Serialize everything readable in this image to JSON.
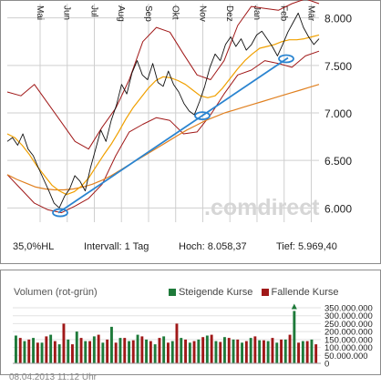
{
  "chart_data": [
    {
      "type": "line",
      "months": [
        "Mai",
        "Jun",
        "Jul",
        "Aug",
        "Sep",
        "Okt",
        "Nov",
        "Dez",
        "Jan",
        "Feb",
        "Mär"
      ],
      "ylim": [
        5.85,
        8.15
      ],
      "yticks": [
        "8.000",
        "7.500",
        "7.000",
        "6.500",
        "6.000"
      ],
      "ytick_values": [
        8.0,
        7.5,
        7.0,
        6.5,
        6.0
      ],
      "series": [
        {
          "values": [
            6.7,
            6.74,
            6.66,
            6.78,
            6.62,
            6.55,
            6.42,
            6.3,
            6.18,
            6.05,
            6.0,
            6.12,
            6.2,
            6.34,
            6.28,
            6.18,
            6.42,
            6.62,
            6.82,
            6.7,
            6.92,
            7.08,
            7.3,
            7.2,
            7.42,
            7.55,
            7.4,
            7.35,
            7.52,
            7.32,
            7.28,
            7.44,
            7.3,
            7.22,
            7.1,
            7.02,
            6.98,
            7.12,
            7.28,
            7.48,
            7.62,
            7.55,
            7.72,
            7.8,
            7.7,
            7.78,
            7.66,
            7.72,
            7.82,
            7.86,
            7.78,
            7.7,
            7.6,
            7.72,
            7.85,
            7.95,
            8.05,
            7.9,
            7.8,
            7.72,
            7.78
          ]
        },
        {
          "values": [
            6.78,
            6.74,
            6.66,
            6.56,
            6.44,
            6.34,
            6.24,
            6.18,
            6.14,
            6.17,
            6.23,
            6.32,
            6.44,
            6.56,
            6.67,
            6.8,
            6.94,
            7.06,
            7.16,
            7.26,
            7.34,
            7.38,
            7.37,
            7.34,
            7.3,
            7.24,
            7.18,
            7.16,
            7.18,
            7.26,
            7.36,
            7.46,
            7.55,
            7.62,
            7.68,
            7.7,
            7.72,
            7.75,
            7.77,
            7.77,
            7.78,
            7.8,
            7.82
          ]
        },
        {
          "values": [
            6.35,
            6.3,
            6.26,
            6.22,
            6.2,
            6.19,
            6.19,
            6.2,
            6.22,
            6.25,
            6.29,
            6.34,
            6.4,
            6.46,
            6.52,
            6.58,
            6.64,
            6.7,
            6.76,
            6.82,
            6.87,
            6.92,
            6.96,
            7.0,
            7.03,
            7.06,
            7.09,
            7.12,
            7.15,
            7.18,
            7.21,
            7.24,
            7.27,
            7.3
          ]
        },
        {
          "values": [
            5.95,
            7.58
          ]
        },
        {
          "values": [
            7.22,
            7.18,
            7.3,
            7.1,
            6.9,
            6.7,
            6.62,
            6.85,
            7.05,
            7.35,
            7.75,
            7.9,
            7.85,
            7.62,
            7.4,
            7.35,
            7.55,
            7.92,
            8.12,
            8.1,
            8.08,
            8.15,
            8.2,
            8.15
          ]
        },
        {
          "values": [
            6.35,
            6.2,
            6.05,
            5.98,
            5.95,
            6.02,
            6.1,
            6.25,
            6.55,
            6.8,
            6.88,
            6.95,
            6.92,
            6.78,
            6.8,
            6.98,
            7.2,
            7.4,
            7.45,
            7.55,
            7.52,
            7.48,
            7.6,
            7.65
          ]
        }
      ]
    },
    {
      "type": "bar",
      "title": "Volumen (rot-grün)",
      "ylim": [
        0,
        350000000
      ],
      "yticks": [
        "350.000.000",
        "300.000.000",
        "250.000.000",
        "200.000.000",
        "150.000.000",
        "100.000.000",
        "50.000.000",
        "0"
      ],
      "ytick_values": [
        350000000,
        300000000,
        250000000,
        200000000,
        150000000,
        100000000,
        50000000,
        0
      ],
      "series": [
        {
          "name": "Steigende Kurse",
          "values": [
            175000000,
            140000000,
            160000000,
            130000000,
            180000000,
            120000000,
            150000000,
            200000000,
            140000000,
            170000000,
            130000000,
            230000000,
            160000000,
            140000000,
            180000000,
            150000000,
            120000000,
            170000000,
            140000000,
            160000000,
            130000000,
            150000000,
            175000000,
            140000000,
            165000000,
            150000000,
            130000000,
            160000000,
            145000000,
            140000000,
            130000000,
            150000000,
            330000000,
            140000000,
            150000000
          ]
        },
        {
          "name": "Fallende Kurse",
          "values": [
            160000000,
            150000000,
            130000000,
            170000000,
            140000000,
            250000000,
            120000000,
            160000000,
            140000000,
            180000000,
            150000000,
            130000000,
            160000000,
            145000000,
            170000000,
            140000000,
            160000000,
            130000000,
            250000000,
            150000000,
            140000000,
            165000000,
            180000000,
            135000000,
            160000000,
            150000000,
            140000000,
            170000000,
            145000000,
            160000000,
            150000000,
            180000000,
            130000000,
            140000000,
            120000000
          ]
        }
      ]
    }
  ],
  "colors": {
    "price_line": "#111111",
    "bollinger": "#a01818",
    "ma_short": "#f0a000",
    "ma_long": "#e08020",
    "trendline": "#2a84d0",
    "rising": "#1e7a3a",
    "falling": "#a01818",
    "grid": "#cfcfcf"
  },
  "watermark": ".comdirect",
  "info": {
    "hl": "35,0%HL",
    "interval": "Intervall: 1 Tag",
    "high": "Hoch:  8.058,37",
    "low": "Tief:  5.969,40"
  },
  "volume": {
    "title": "Volumen (rot-grün)",
    "legend_rising": "Steigende Kurse",
    "legend_falling": "Fallende Kurse"
  },
  "timestamp": "08.04.2013 11:12 Uhr"
}
